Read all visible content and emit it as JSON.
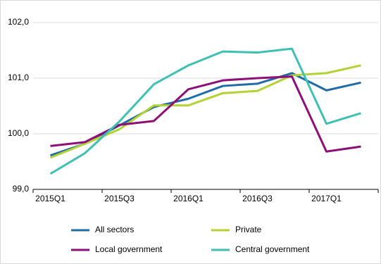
{
  "chart_data": {
    "type": "line",
    "categories": [
      "2015Q1",
      null,
      "2015Q3",
      null,
      "2016Q1",
      null,
      "2016Q3",
      null,
      "2017Q1",
      null
    ],
    "series": [
      {
        "name": "All sectors",
        "color": "#1f6ca6",
        "values": [
          99.61,
          99.82,
          100.15,
          100.48,
          100.63,
          100.86,
          100.9,
          101.09,
          100.78,
          100.92
        ]
      },
      {
        "name": "Private",
        "color": "#b3d334",
        "values": [
          99.57,
          99.82,
          100.08,
          100.51,
          100.51,
          100.73,
          100.77,
          101.05,
          101.09,
          101.23
        ]
      },
      {
        "name": "Local government",
        "color": "#8e0f7a",
        "values": [
          99.78,
          99.85,
          100.16,
          100.23,
          100.8,
          100.96,
          101.0,
          101.03,
          99.68,
          99.77
        ]
      },
      {
        "name": "Central government",
        "color": "#3ec1b3",
        "values": [
          99.28,
          99.65,
          100.22,
          100.89,
          101.23,
          101.48,
          101.46,
          101.53,
          100.18,
          100.37
        ]
      }
    ],
    "ylim": [
      99,
      102
    ],
    "yticks": [
      {
        "value": 99,
        "label": "99,0"
      },
      {
        "value": 100,
        "label": "100,0"
      },
      {
        "value": 101,
        "label": "101,0"
      },
      {
        "value": 102,
        "label": "102,0"
      }
    ],
    "grid": true
  }
}
